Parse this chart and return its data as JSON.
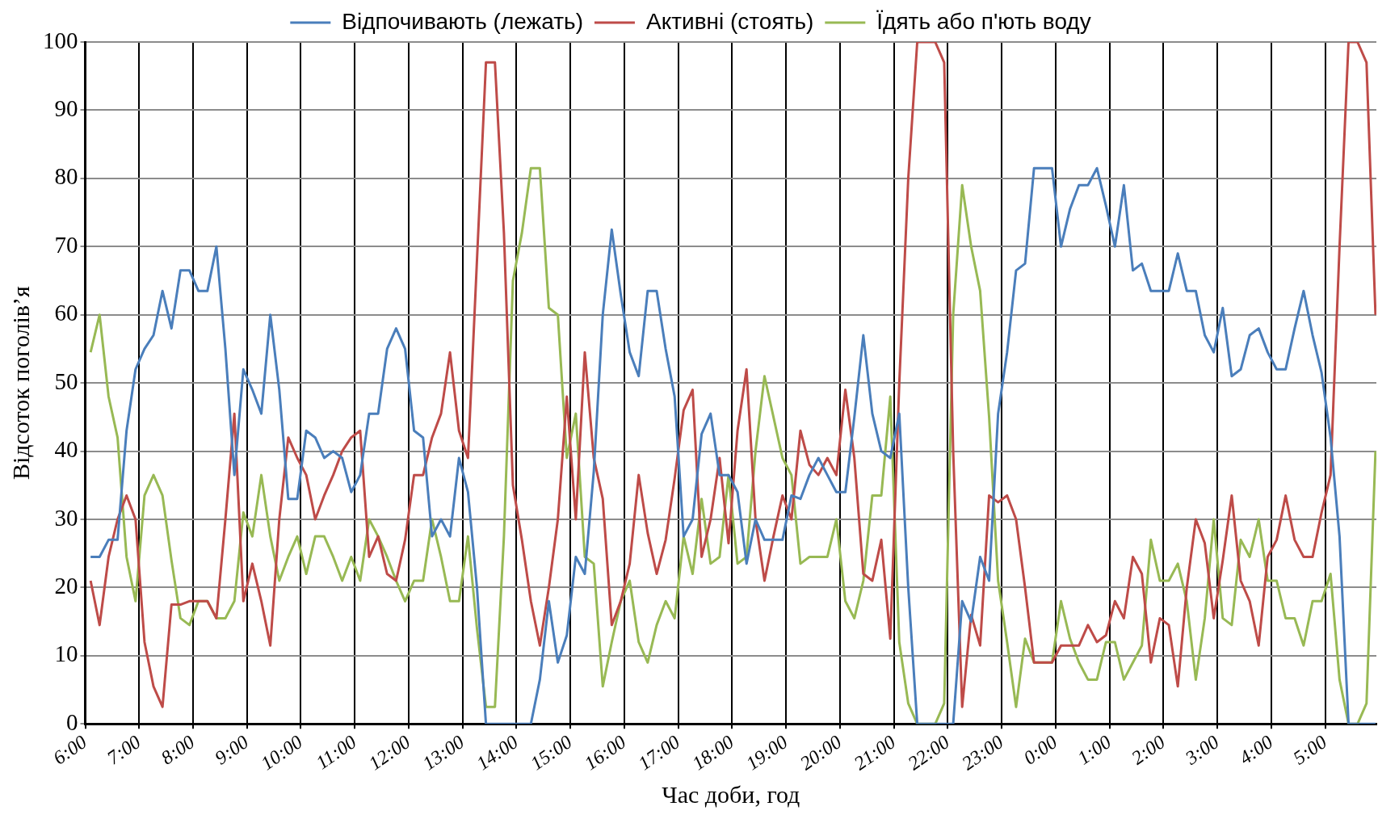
{
  "chart_data": {
    "type": "line",
    "xlabel": "Час доби, год",
    "ylabel": "Відсоток поголів’я",
    "legend": "top",
    "grid": true,
    "marker": "none",
    "line_style": "solid",
    "xlim": [
      "--01-01T06:00",
      "--01-02T05:57"
    ],
    "ylim": [
      0,
      100
    ],
    "yticks": [
      0,
      10,
      20,
      30,
      40,
      50,
      60,
      70,
      80,
      90,
      100
    ],
    "xticks": [
      {
        "value": "--01-01T06:00",
        "label": "6:00"
      },
      {
        "value": "--01-01T07:00",
        "label": "7:00"
      },
      {
        "value": "--01-01T08:00",
        "label": "8:00"
      },
      {
        "value": "--01-01T09:00",
        "label": "9:00"
      },
      {
        "value": "--01-01T10:00",
        "label": "10:00"
      },
      {
        "value": "--01-01T11:00",
        "label": "11:00"
      },
      {
        "value": "--01-01T12:00",
        "label": "12:00"
      },
      {
        "value": "--01-01T13:00",
        "label": "13:00"
      },
      {
        "value": "--01-01T14:00",
        "label": "14:00"
      },
      {
        "value": "--01-01T15:00",
        "label": "15:00"
      },
      {
        "value": "--01-01T16:00",
        "label": "16:00"
      },
      {
        "value": "--01-01T17:00",
        "label": "17:00"
      },
      {
        "value": "--01-01T18:00",
        "label": "18:00"
      },
      {
        "value": "--01-01T19:00",
        "label": "19:00"
      },
      {
        "value": "--01-01T20:00",
        "label": "20:00"
      },
      {
        "value": "--01-01T21:00",
        "label": "21:00"
      },
      {
        "value": "--01-01T22:00",
        "label": "22:00"
      },
      {
        "value": "--01-01T23:00",
        "label": "23:00"
      },
      {
        "value": "--01-02T00:00",
        "label": "0:00"
      },
      {
        "value": "--01-02T01:00",
        "label": "1:00"
      },
      {
        "value": "--01-02T02:00",
        "label": "2:00"
      },
      {
        "value": "--01-02T03:00",
        "label": "3:00"
      },
      {
        "value": "--01-02T04:00",
        "label": "4:00"
      },
      {
        "value": "--01-02T05:00",
        "label": "5:00"
      }
    ],
    "x": [
      "--01-01T06:06",
      "--01-01T06:16",
      "--01-01T06:26",
      "--01-01T06:36",
      "--01-01T06:46",
      "--01-01T06:56",
      "--01-01T07:06",
      "--01-01T07:16",
      "--01-01T07:26",
      "--01-01T07:36",
      "--01-01T07:46",
      "--01-01T07:56",
      "--01-01T08:06",
      "--01-01T08:16",
      "--01-01T08:26",
      "--01-01T08:36",
      "--01-01T08:46",
      "--01-01T08:56",
      "--01-01T09:06",
      "--01-01T09:16",
      "--01-01T09:26",
      "--01-01T09:36",
      "--01-01T09:46",
      "--01-01T09:56",
      "--01-01T10:06",
      "--01-01T10:16",
      "--01-01T10:26",
      "--01-01T10:36",
      "--01-01T10:46",
      "--01-01T10:56",
      "--01-01T11:06",
      "--01-01T11:16",
      "--01-01T11:26",
      "--01-01T11:36",
      "--01-01T11:46",
      "--01-01T11:56",
      "--01-01T12:06",
      "--01-01T12:16",
      "--01-01T12:26",
      "--01-01T12:36",
      "--01-01T12:46",
      "--01-01T12:56",
      "--01-01T13:06",
      "--01-01T13:16",
      "--01-01T13:26",
      "--01-01T13:36",
      "--01-01T13:46",
      "--01-01T13:56",
      "--01-01T14:06",
      "--01-01T14:16",
      "--01-01T14:26",
      "--01-01T14:36",
      "--01-01T14:46",
      "--01-01T14:56",
      "--01-01T15:06",
      "--01-01T15:16",
      "--01-01T15:26",
      "--01-01T15:36",
      "--01-01T15:46",
      "--01-01T15:56",
      "--01-01T16:06",
      "--01-01T16:16",
      "--01-01T16:26",
      "--01-01T16:36",
      "--01-01T16:46",
      "--01-01T16:56",
      "--01-01T17:06",
      "--01-01T17:16",
      "--01-01T17:26",
      "--01-01T17:36",
      "--01-01T17:46",
      "--01-01T17:56",
      "--01-01T18:06",
      "--01-01T18:16",
      "--01-01T18:26",
      "--01-01T18:36",
      "--01-01T18:46",
      "--01-01T18:56",
      "--01-01T19:06",
      "--01-01T19:16",
      "--01-01T19:26",
      "--01-01T19:36",
      "--01-01T19:46",
      "--01-01T19:56",
      "--01-01T20:06",
      "--01-01T20:16",
      "--01-01T20:26",
      "--01-01T20:36",
      "--01-01T20:46",
      "--01-01T20:56",
      "--01-01T21:06",
      "--01-01T21:16",
      "--01-01T21:26",
      "--01-01T21:36",
      "--01-01T21:46",
      "--01-01T21:56",
      "--01-01T22:06",
      "--01-01T22:16",
      "--01-01T22:26",
      "--01-01T22:36",
      "--01-01T22:46",
      "--01-01T22:56",
      "--01-01T23:06",
      "--01-01T23:16",
      "--01-01T23:26",
      "--01-01T23:36",
      "--01-01T23:46",
      "--01-01T23:56",
      "--01-02T00:06",
      "--01-02T00:16",
      "--01-02T00:26",
      "--01-02T00:36",
      "--01-02T00:46",
      "--01-02T00:56",
      "--01-02T01:06",
      "--01-02T01:16",
      "--01-02T01:26",
      "--01-02T01:36",
      "--01-02T01:46",
      "--01-02T01:56",
      "--01-02T02:06",
      "--01-02T02:16",
      "--01-02T02:26",
      "--01-02T02:36",
      "--01-02T02:46",
      "--01-02T02:56",
      "--01-02T03:06",
      "--01-02T03:16",
      "--01-02T03:26",
      "--01-02T03:36",
      "--01-02T03:46",
      "--01-02T03:56",
      "--01-02T04:06",
      "--01-02T04:16",
      "--01-02T04:26",
      "--01-02T04:36",
      "--01-02T04:46",
      "--01-02T04:56",
      "--01-02T05:06",
      "--01-02T05:16",
      "--01-02T05:26",
      "--01-02T05:36",
      "--01-02T05:46",
      "--01-02T05:56"
    ],
    "series": [
      {
        "name": "Відпочивають (лежать)",
        "color": "#4a7ebb",
        "values": [
          24.5,
          24.5,
          27,
          27,
          43,
          52,
          55,
          57,
          63.5,
          58,
          66.5,
          66.5,
          63.5,
          63.5,
          70,
          55,
          36.5,
          52,
          49,
          45.5,
          60,
          49,
          33,
          33,
          43,
          42,
          39,
          40,
          39,
          34,
          36.5,
          45.5,
          45.5,
          55,
          58,
          55,
          43,
          42,
          27.5,
          30,
          27.5,
          39,
          34,
          20,
          0,
          0,
          0,
          0,
          0,
          0,
          6.5,
          18,
          9,
          13,
          24.5,
          22,
          37,
          60,
          72.5,
          63,
          54.5,
          51,
          63.5,
          63.5,
          55,
          48,
          27.5,
          30,
          42.5,
          45.5,
          36.5,
          36.5,
          34,
          23.5,
          30,
          27,
          27,
          27,
          33.5,
          33,
          36.5,
          39,
          36.5,
          34,
          34,
          45,
          57,
          45.5,
          40,
          39,
          45.5,
          20,
          0,
          0,
          0,
          0,
          0,
          18,
          15,
          24.5,
          21,
          45.5,
          54.5,
          66.5,
          67.5,
          81.5,
          81.5,
          81.5,
          70,
          75.5,
          79,
          79,
          81.5,
          76,
          70,
          79,
          66.5,
          67.5,
          63.5,
          63.5,
          63.5,
          69,
          63.5,
          63.5,
          57,
          54.5,
          61,
          51,
          52,
          57,
          58,
          54.5,
          52,
          52,
          58,
          63.5,
          57,
          51.5,
          42,
          27.5,
          0,
          0,
          0,
          0
        ]
      },
      {
        "name": "Активні (стоять)",
        "color": "#be4b48",
        "values": [
          21,
          14.5,
          24.5,
          30,
          33.5,
          30,
          12,
          5.5,
          2.5,
          17.5,
          17.5,
          18,
          18,
          18,
          15.5,
          30,
          45.5,
          18,
          23.5,
          18,
          11.5,
          30,
          42,
          39,
          36.5,
          30,
          33.5,
          36.5,
          40,
          42,
          43,
          24.5,
          27.5,
          22,
          21,
          27,
          36.5,
          36.5,
          42,
          45.5,
          54.5,
          43,
          39,
          68,
          97,
          97,
          72,
          35,
          27,
          18,
          11.5,
          20,
          30,
          48,
          30,
          54.5,
          39,
          33,
          14.5,
          18,
          23.5,
          36.5,
          28,
          22,
          27,
          36,
          46,
          49,
          24.5,
          30,
          39,
          26.5,
          43,
          52,
          30,
          21,
          27.5,
          33.5,
          30,
          43,
          38,
          36.5,
          39,
          36.5,
          49,
          39,
          22,
          21,
          27,
          12.5,
          50,
          80,
          100,
          100,
          100,
          97,
          40,
          2.5,
          16,
          11.5,
          33.5,
          32.5,
          33.5,
          30,
          20,
          9,
          9,
          9,
          11.5,
          11.5,
          11.5,
          14.5,
          12,
          13,
          18,
          15.5,
          24.5,
          22,
          9,
          15.5,
          14.5,
          5.5,
          20,
          30,
          26.5,
          15.5,
          24,
          33.5,
          21,
          18,
          11.5,
          24.5,
          27,
          33.5,
          27,
          24.5,
          24.5,
          31,
          36.5,
          70,
          100,
          100,
          97,
          60
        ]
      },
      {
        "name": "Їдять або п'ють воду",
        "color": "#98b954",
        "values": [
          54.5,
          60,
          48,
          42,
          24.5,
          18,
          33.5,
          36.5,
          33.5,
          24,
          15.5,
          14.5,
          18,
          18,
          15.5,
          15.5,
          18,
          31,
          27.5,
          36.5,
          27.5,
          21,
          24.5,
          27.5,
          22,
          27.5,
          27.5,
          24.5,
          21,
          24.5,
          21,
          30,
          27.5,
          24.5,
          21,
          18,
          21,
          21,
          30,
          24.5,
          18,
          18,
          27.5,
          14,
          2.5,
          2.5,
          27.5,
          65,
          72,
          81.5,
          81.5,
          61,
          60,
          39,
          45.5,
          24.5,
          23.5,
          5.5,
          12,
          18,
          21,
          12,
          9,
          14.5,
          18,
          15.5,
          27.5,
          22,
          33,
          23.5,
          24.5,
          36.5,
          23.5,
          24.5,
          40,
          51,
          45,
          39,
          36.5,
          23.5,
          24.5,
          24.5,
          24.5,
          30,
          18,
          15.5,
          21,
          33.5,
          33.5,
          48,
          12,
          3,
          0,
          0,
          0,
          3,
          60,
          79,
          70,
          63.5,
          45,
          21,
          12,
          2.5,
          12.5,
          9,
          9,
          9,
          18,
          12.5,
          9,
          6.5,
          6.5,
          12,
          12,
          6.5,
          9,
          11.5,
          27,
          21,
          21,
          23.5,
          18,
          6.5,
          15.5,
          30,
          15.5,
          14.5,
          27,
          24.5,
          30,
          21,
          21,
          15.5,
          15.5,
          11.5,
          18,
          18,
          22,
          6.5,
          0,
          0,
          3,
          40
        ]
      }
    ]
  }
}
